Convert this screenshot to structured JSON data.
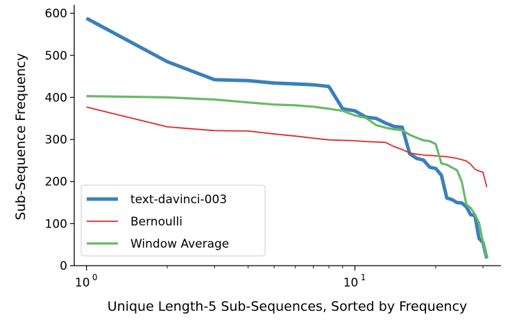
{
  "chart_data": {
    "type": "line",
    "xscale": "log",
    "xlabel": "Unique Length-5 Sub-Sequences, Sorted by Frequency",
    "ylabel": "Sub-Sequence Frequency",
    "xlim": [
      0.9,
      35
    ],
    "ylim": [
      0,
      620
    ],
    "grid": false,
    "legend": "lower-left",
    "x_ticks": [
      {
        "value": 1,
        "label": "10",
        "exp": "0"
      },
      {
        "value": 10,
        "label": "10",
        "exp": "1"
      }
    ],
    "y_ticks": [
      0,
      100,
      200,
      300,
      400,
      500,
      600
    ],
    "x": [
      1,
      2,
      3,
      4,
      5,
      6,
      7,
      8,
      9,
      10,
      11,
      12,
      13,
      14,
      15,
      16,
      17,
      18,
      19,
      20,
      21,
      22,
      23,
      24,
      25,
      26,
      27,
      28,
      29,
      30,
      31
    ],
    "series": [
      {
        "name": "text-davinci-003",
        "color": "#3a80ba",
        "width": 5,
        "values": [
          588,
          485,
          442,
          440,
          434,
          432,
          430,
          426,
          373,
          368,
          353,
          350,
          339,
          331,
          329,
          266,
          255,
          251,
          234,
          231,
          215,
          161,
          157,
          150,
          149,
          140,
          121,
          119,
          65,
          55,
          17
        ]
      },
      {
        "name": "Bernoulli",
        "color": "#e0282b",
        "width": 1.8,
        "values": [
          377,
          330,
          321,
          320,
          313,
          308,
          303,
          299,
          298,
          297,
          295,
          294,
          293,
          283,
          276,
          268,
          265,
          263,
          262,
          261,
          260,
          259,
          257,
          255,
          252,
          249,
          241,
          229,
          225,
          222,
          187
        ]
      },
      {
        "name": "Window Average",
        "color": "#6ab965",
        "width": 3.2,
        "values": [
          403,
          400,
          395,
          388,
          383,
          381,
          378,
          373,
          368,
          357,
          351,
          334,
          328,
          324,
          322,
          311,
          304,
          298,
          296,
          289,
          243,
          240,
          233,
          227,
          200,
          146,
          137,
          122,
          102,
          56,
          17
        ]
      }
    ]
  }
}
